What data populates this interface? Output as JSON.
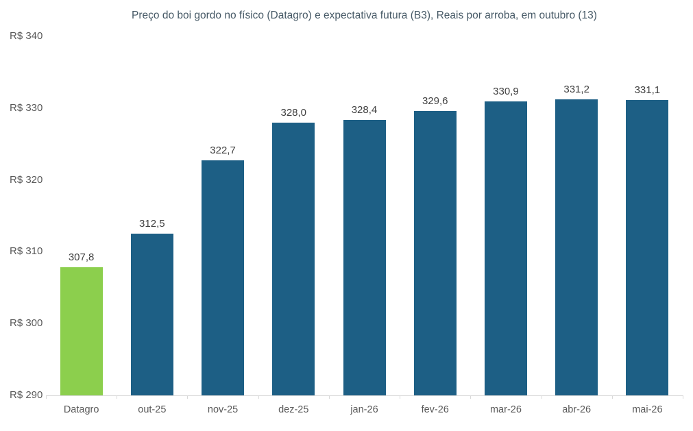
{
  "chart_data": {
    "type": "bar",
    "title": "Preço do boi gordo no físico (Datagro)  e expectativa futura (B3), Reais por arroba, em outubro (13)",
    "categories": [
      "Datagro",
      "out-25",
      "nov-25",
      "dez-25",
      "jan-26",
      "fev-26",
      "mar-26",
      "abr-26",
      "mai-26"
    ],
    "values": [
      307.8,
      312.5,
      322.7,
      328.0,
      328.4,
      329.6,
      330.9,
      331.2,
      331.1
    ],
    "value_labels": [
      "307,8",
      "312,5",
      "322,7",
      "328,0",
      "328,4",
      "329,6",
      "330,9",
      "331,2",
      "331,1"
    ],
    "bar_colors": [
      "#8CCF4D",
      "#1D5F85",
      "#1D5F85",
      "#1D5F85",
      "#1D5F85",
      "#1D5F85",
      "#1D5F85",
      "#1D5F85",
      "#1D5F85"
    ],
    "series_legend": "none",
    "grid": "off",
    "xlabel": "",
    "ylabel": "",
    "ylim": [
      290,
      340
    ],
    "y_tick_labels": [
      "R$ 340",
      "R$ 330",
      "R$ 320",
      "R$ 310",
      "R$ 300",
      "R$ 290"
    ],
    "y_tick_values": [
      340,
      330,
      320,
      310,
      300,
      290
    ]
  },
  "colors": {
    "background": "#FFFFFF",
    "datagro_bar": "#8CCF4D",
    "futures_bar": "#1D5F85",
    "axis_line": "#D9D9D9",
    "title_text": "#465966",
    "tick_text": "#595959",
    "data_label_text": "#404040"
  }
}
